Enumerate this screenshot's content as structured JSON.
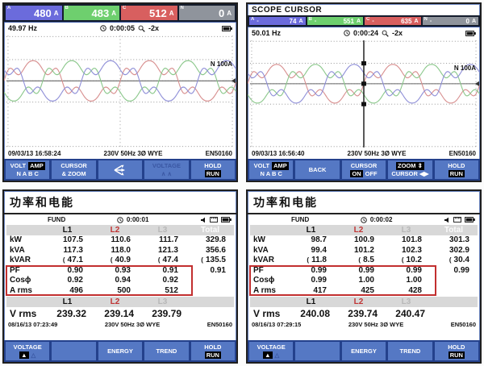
{
  "colors": {
    "l1": "#101010",
    "l2": "#c03434",
    "l3": "#b7b7b7",
    "total": "#fbfbfb",
    "highlight_box": "#c22f2f",
    "softkey_bar": "#24418c",
    "softkey": "#5578c4",
    "phase_a": "#6b6bdc",
    "phase_b": "#6ecf6e",
    "phase_c": "#d85f5f",
    "phase_n": "#8f949c"
  },
  "wave": {
    "cycles": 2,
    "amp": 24,
    "neutral": "#666666",
    "colors": [
      "#d89090",
      "#8cc88c",
      "#9090d8"
    ]
  },
  "scope": {
    "amps": [
      {
        "p": "A",
        "v": "480",
        "u": "A"
      },
      {
        "p": "B",
        "v": "483",
        "u": "A"
      },
      {
        "p": "C",
        "v": "512",
        "u": "A"
      },
      {
        "p": "N",
        "v": "0",
        "u": "A"
      }
    ],
    "freq": "49.97 Hz",
    "elapsed": "0:00:05",
    "zoom": "-2x",
    "wave_label": "N 100A",
    "status": {
      "dt": "09/03/13 16:58:24",
      "cfg": "230V 50Hz 3Ø WYE",
      "std": "EN50160"
    },
    "keys": {
      "k1a": "VOLT",
      "k1b": "AMP",
      "k1c": "N A B C",
      "k2a": "CURSOR",
      "k2b": "& ZOOM",
      "k4a": "VOLTAGE",
      "k4b": "∧ ∧",
      "k5a": "HOLD",
      "k5b": "RUN"
    }
  },
  "scope_cursor": {
    "title": "SCOPE CURSOR",
    "amps": [
      {
        "p": "A",
        "d": "-",
        "v": "74",
        "u": "A"
      },
      {
        "p": "B",
        "d": "-",
        "v": "551",
        "u": "A"
      },
      {
        "p": "C",
        "d": "-",
        "v": "635",
        "u": "A"
      },
      {
        "p": "N",
        "d": "-",
        "v": "0",
        "u": "A"
      }
    ],
    "freq": "50.01 Hz",
    "elapsed": "0:00:24",
    "zoom": "-2x",
    "wave_label": "N 100A",
    "status": {
      "dt": "09/03/13 16:56:40",
      "cfg": "230V 50Hz 3Ø WYE",
      "std": "EN50160"
    },
    "keys": {
      "k1a": "VOLT",
      "k1b": "AMP",
      "k1c": "N A B C",
      "k2": "BACK",
      "k3a": "CURSOR",
      "k3b": "ON",
      "k3c": "OFF",
      "k4a": "ZOOM ⇕",
      "k4b": "CURSOR ◀▶",
      "k5a": "HOLD",
      "k5b": "RUN"
    }
  },
  "power1": {
    "title": "功率和电能",
    "mode": "FUND",
    "elapsed": "0:00:01",
    "cols": [
      "L1",
      "L2",
      "L3",
      "Total"
    ],
    "rows": [
      {
        "label": "kW",
        "values": [
          "107.5",
          "110.6",
          "111.7",
          "329.8"
        ]
      },
      {
        "label": "kVA",
        "values": [
          "117.3",
          "118.0",
          "121.3",
          "356.6"
        ]
      },
      {
        "label": "kVAR",
        "pre": "(",
        "values": [
          "47.1",
          "40.9",
          "47.4",
          "135.5"
        ]
      },
      {
        "label": "PF",
        "values": [
          "0.90",
          "0.93",
          "0.91",
          "0.91"
        ]
      },
      {
        "label": "Cosϕ",
        "values": [
          "0.92",
          "0.94",
          "0.92",
          ""
        ]
      },
      {
        "label": "A rms",
        "values": [
          "496",
          "500",
          "512",
          ""
        ]
      }
    ],
    "vcols": [
      "L1",
      "L2",
      "L3"
    ],
    "vrms": {
      "label": "V rms",
      "values": [
        "239.32",
        "239.14",
        "239.79"
      ]
    },
    "status": {
      "dt": "08/16/13 07:23:49",
      "cfg": "230V 50Hz 3Ø WYE",
      "std": "EN50160"
    },
    "keys": {
      "k1a": "VOLTAGE",
      "k1b": "▲",
      "k1c": "△",
      "k3": "ENERGY",
      "k4": "TREND",
      "k5a": "HOLD",
      "k5b": "RUN"
    }
  },
  "power2": {
    "title": "功率和电能",
    "mode": "FUND",
    "elapsed": "0:00:02",
    "cols": [
      "L1",
      "L2",
      "L3",
      "Total"
    ],
    "rows": [
      {
        "label": "kW",
        "values": [
          "98.7",
          "100.9",
          "101.8",
          "301.3"
        ]
      },
      {
        "label": "kVA",
        "values": [
          "99.4",
          "101.2",
          "102.3",
          "302.9"
        ]
      },
      {
        "label": "kVAR",
        "pre": "(",
        "values": [
          "11.8",
          "8.5",
          "10.2",
          "30.4"
        ]
      },
      {
        "label": "PF",
        "values": [
          "0.99",
          "0.99",
          "0.99",
          "0.99"
        ]
      },
      {
        "label": "Cosϕ",
        "values": [
          "0.99",
          "1.00",
          "1.00",
          ""
        ]
      },
      {
        "label": "A rms",
        "values": [
          "417",
          "425",
          "428",
          ""
        ]
      }
    ],
    "vcols": [
      "L1",
      "L2",
      "L3"
    ],
    "vrms": {
      "label": "V rms",
      "values": [
        "240.08",
        "239.74",
        "240.47"
      ]
    },
    "status": {
      "dt": "08/16/13 07:29:15",
      "cfg": "230V 50Hz 3Ø WYE",
      "std": "EN50160"
    },
    "keys": {
      "k1a": "VOLTAGE",
      "k1b": "▲",
      "k1c": "△",
      "k3": "ENERGY",
      "k4": "TREND",
      "k5a": "HOLD",
      "k5b": "RUN"
    }
  }
}
